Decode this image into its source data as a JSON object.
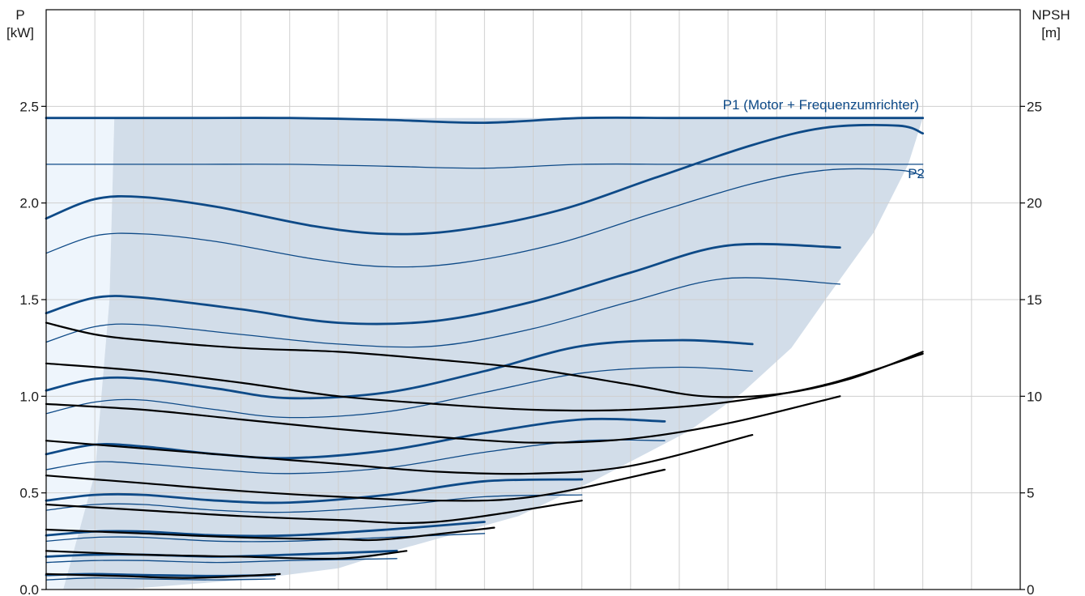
{
  "chart_data": {
    "type": "line",
    "title": "",
    "left_axis": {
      "label_line1": "P",
      "label_line2": "[kW]",
      "range": [
        0,
        3.0
      ],
      "ticks": [
        "0.0",
        "0.5",
        "1.0",
        "1.5",
        "2.0",
        "2.5"
      ],
      "tick_values": [
        0,
        0.5,
        1.0,
        1.5,
        2.0,
        2.5
      ]
    },
    "right_axis": {
      "label_line1": "NPSH",
      "label_line2": "[m]",
      "range": [
        0,
        30
      ],
      "ticks": [
        "0",
        "5",
        "10",
        "15",
        "20",
        "25"
      ],
      "tick_values": [
        0,
        5,
        10,
        15,
        20,
        25
      ]
    },
    "x_axis": {
      "range": [
        0,
        20
      ],
      "vertical_gridlines": 20,
      "tick_labels_shown": false
    },
    "grid": true,
    "colors": {
      "power": "#0e4a87",
      "npsh": "#000000",
      "envelope": "#d2dde9",
      "extended_area": "#eef5fc",
      "grid": "#cfcfcf"
    },
    "annotations": {
      "p1_label": "P1 (Motor + Frequenzumrichter)",
      "p2_label": "P2"
    },
    "envelope": {
      "left_extended": [
        [
          0,
          0
        ],
        [
          0,
          2.44
        ],
        [
          1.4,
          2.44
        ],
        [
          1.3,
          1.5
        ],
        [
          1.0,
          0.6
        ],
        [
          0.7,
          0
        ]
      ],
      "light": [
        [
          0.35,
          0
        ],
        [
          1.0,
          0.6
        ],
        [
          1.3,
          1.5
        ],
        [
          1.4,
          2.44
        ],
        [
          18.0,
          2.44
        ],
        [
          17.7,
          2.2
        ],
        [
          17.0,
          1.85
        ],
        [
          16.0,
          1.5
        ],
        [
          15.3,
          1.25
        ],
        [
          14.3,
          1.02
        ],
        [
          13.2,
          0.82
        ],
        [
          11.3,
          0.57
        ],
        [
          9.7,
          0.38
        ],
        [
          7.0,
          0.19
        ],
        [
          6.0,
          0.11
        ],
        [
          4.3,
          0.055
        ],
        [
          1.8,
          0.005
        ]
      ]
    },
    "series": [
      {
        "group": "power-p1",
        "weight": "thick",
        "x": [
          0,
          1.2,
          3,
          5,
          7,
          9,
          11,
          13,
          15,
          16.5,
          18
        ],
        "y": [
          2.44,
          2.44,
          2.44,
          2.44,
          2.43,
          2.415,
          2.44,
          2.44,
          2.44,
          2.44,
          2.44
        ]
      },
      {
        "group": "power-p2",
        "weight": "thin",
        "x": [
          0,
          1.2,
          3,
          5,
          7,
          9,
          11,
          13,
          15,
          16.5,
          18
        ],
        "y": [
          2.2,
          2.2,
          2.2,
          2.2,
          2.19,
          2.18,
          2.2,
          2.2,
          2.2,
          2.2,
          2.2
        ]
      },
      {
        "group": "power-p1",
        "weight": "thick",
        "x": [
          0,
          1.0,
          2.0,
          3.5,
          5.5,
          7.0,
          8.5,
          10.5,
          12.5,
          14.5,
          16.0,
          17.5,
          18.0
        ],
        "y": [
          1.92,
          2.02,
          2.03,
          1.98,
          1.88,
          1.84,
          1.86,
          1.96,
          2.13,
          2.3,
          2.39,
          2.4,
          2.36
        ]
      },
      {
        "group": "power-p2",
        "weight": "thin",
        "x": [
          0,
          1.0,
          2.0,
          3.5,
          5.5,
          7.0,
          8.5,
          10.5,
          12.5,
          14.5,
          16.0,
          17.5,
          18.0
        ],
        "y": [
          1.74,
          1.83,
          1.84,
          1.8,
          1.71,
          1.67,
          1.69,
          1.79,
          1.95,
          2.1,
          2.17,
          2.17,
          2.14
        ]
      },
      {
        "group": "power-p1",
        "weight": "thick",
        "x": [
          0,
          1.0,
          2.0,
          4.0,
          6.0,
          8.0,
          10.0,
          12.0,
          14.0,
          16.3
        ],
        "y": [
          1.43,
          1.51,
          1.51,
          1.45,
          1.38,
          1.39,
          1.49,
          1.64,
          1.78,
          1.77
        ]
      },
      {
        "group": "power-p2",
        "weight": "thin",
        "x": [
          0,
          1.0,
          2.0,
          4.0,
          6.0,
          8.0,
          10.0,
          12.0,
          14.0,
          16.3
        ],
        "y": [
          1.28,
          1.36,
          1.37,
          1.32,
          1.27,
          1.26,
          1.35,
          1.49,
          1.61,
          1.58
        ]
      },
      {
        "group": "power-p1",
        "weight": "thick",
        "x": [
          0,
          1.0,
          2.0,
          3.5,
          5.0,
          7.0,
          9.0,
          11.0,
          13.0,
          14.5
        ],
        "y": [
          1.03,
          1.09,
          1.09,
          1.04,
          0.99,
          1.02,
          1.13,
          1.26,
          1.29,
          1.27
        ]
      },
      {
        "group": "power-p2",
        "weight": "thin",
        "x": [
          0,
          1.0,
          2.0,
          3.5,
          5.0,
          7.0,
          9.0,
          11.0,
          13.0,
          14.5
        ],
        "y": [
          0.91,
          0.97,
          0.98,
          0.93,
          0.89,
          0.92,
          1.02,
          1.12,
          1.15,
          1.13
        ]
      },
      {
        "group": "power-p1",
        "weight": "thick",
        "x": [
          0,
          1.0,
          2.0,
          3.5,
          5.0,
          7.0,
          9.0,
          11.0,
          12.7
        ],
        "y": [
          0.7,
          0.75,
          0.74,
          0.7,
          0.68,
          0.72,
          0.81,
          0.88,
          0.87
        ]
      },
      {
        "group": "power-p2",
        "weight": "thin",
        "x": [
          0,
          1.0,
          2.0,
          3.5,
          5.0,
          7.0,
          9.0,
          11.0,
          12.7
        ],
        "y": [
          0.62,
          0.66,
          0.65,
          0.62,
          0.6,
          0.63,
          0.71,
          0.77,
          0.77
        ]
      },
      {
        "group": "power-p1",
        "weight": "thick",
        "x": [
          0,
          1.0,
          2.0,
          3.5,
          5.0,
          7.0,
          9.0,
          11.0
        ],
        "y": [
          0.46,
          0.49,
          0.49,
          0.46,
          0.45,
          0.49,
          0.56,
          0.57
        ]
      },
      {
        "group": "power-p2",
        "weight": "thin",
        "x": [
          0,
          1.0,
          2.0,
          3.5,
          5.0,
          7.0,
          9.0,
          11.0
        ],
        "y": [
          0.41,
          0.44,
          0.44,
          0.41,
          0.4,
          0.43,
          0.48,
          0.49
        ]
      },
      {
        "group": "power-p1",
        "weight": "thick",
        "x": [
          0,
          1.0,
          2.0,
          3.5,
          5.0,
          7.0,
          9.0
        ],
        "y": [
          0.28,
          0.3,
          0.3,
          0.28,
          0.28,
          0.31,
          0.35
        ]
      },
      {
        "group": "power-p2",
        "weight": "thin",
        "x": [
          0,
          1.0,
          2.0,
          3.5,
          5.0,
          7.0,
          9.0
        ],
        "y": [
          0.25,
          0.27,
          0.27,
          0.25,
          0.25,
          0.27,
          0.29
        ]
      },
      {
        "group": "power-p1",
        "weight": "thick",
        "x": [
          0,
          1.0,
          2.0,
          3.5,
          5.0,
          7.2
        ],
        "y": [
          0.17,
          0.18,
          0.18,
          0.17,
          0.18,
          0.2
        ]
      },
      {
        "group": "power-p2",
        "weight": "thin",
        "x": [
          0,
          1.0,
          2.0,
          3.5,
          5.0,
          7.2
        ],
        "y": [
          0.14,
          0.15,
          0.15,
          0.14,
          0.15,
          0.16
        ]
      },
      {
        "group": "power-p1",
        "weight": "thick",
        "x": [
          0,
          1.0,
          2.0,
          3.5,
          4.7
        ],
        "y": [
          0.075,
          0.08,
          0.075,
          0.07,
          0.075
        ]
      },
      {
        "group": "power-p2",
        "weight": "thin",
        "x": [
          0,
          1.0,
          2.0,
          3.5,
          4.7
        ],
        "y": [
          0.05,
          0.06,
          0.055,
          0.05,
          0.055
        ]
      },
      {
        "group": "npsh",
        "weight": "npsh",
        "x": [
          0,
          1.0,
          2.0,
          4.0,
          6.0,
          8.0,
          10.0,
          12.0,
          13.5,
          15.0,
          16.5,
          18.0
        ],
        "y": [
          13.8,
          13.2,
          12.9,
          12.5,
          12.3,
          11.9,
          11.4,
          10.6,
          10.0,
          10.1,
          10.9,
          12.3
        ]
      },
      {
        "group": "npsh",
        "weight": "npsh",
        "x": [
          0,
          2.0,
          4.0,
          6.0,
          8.0,
          10.0,
          12.0,
          14.0,
          16.0,
          18.0
        ],
        "y": [
          11.7,
          11.3,
          10.7,
          10.0,
          9.6,
          9.3,
          9.3,
          9.7,
          10.6,
          12.2
        ]
      },
      {
        "group": "npsh",
        "weight": "npsh",
        "x": [
          0,
          2.0,
          4.0,
          6.0,
          8.0,
          10.0,
          12.0,
          14.0,
          16.3
        ],
        "y": [
          9.6,
          9.3,
          8.8,
          8.3,
          7.9,
          7.6,
          7.8,
          8.6,
          10.0
        ]
      },
      {
        "group": "npsh",
        "weight": "npsh",
        "x": [
          0,
          2.0,
          4.0,
          6.0,
          8.0,
          10.0,
          12.0,
          14.5
        ],
        "y": [
          7.7,
          7.3,
          6.9,
          6.5,
          6.1,
          6.0,
          6.4,
          8.0
        ]
      },
      {
        "group": "npsh",
        "weight": "npsh",
        "x": [
          0,
          2.0,
          4.0,
          6.0,
          8.0,
          10.0,
          12.7
        ],
        "y": [
          5.9,
          5.5,
          5.1,
          4.8,
          4.6,
          4.8,
          6.2
        ]
      },
      {
        "group": "npsh",
        "weight": "npsh",
        "x": [
          0,
          2.0,
          4.0,
          6.0,
          8.0,
          11.0
        ],
        "y": [
          4.4,
          4.1,
          3.8,
          3.6,
          3.5,
          4.6
        ]
      },
      {
        "group": "npsh",
        "weight": "npsh",
        "x": [
          0,
          2.0,
          4.0,
          6.0,
          7.0,
          9.2
        ],
        "y": [
          3.1,
          2.9,
          2.7,
          2.6,
          2.6,
          3.2
        ]
      },
      {
        "group": "npsh",
        "weight": "npsh",
        "x": [
          0,
          2.0,
          4.0,
          6.0,
          7.4
        ],
        "y": [
          2.0,
          1.8,
          1.7,
          1.6,
          2.0
        ]
      },
      {
        "group": "npsh",
        "weight": "npsh",
        "x": [
          0,
          1.5,
          3.0,
          4.8
        ],
        "y": [
          0.8,
          0.7,
          0.6,
          0.8
        ]
      }
    ]
  }
}
